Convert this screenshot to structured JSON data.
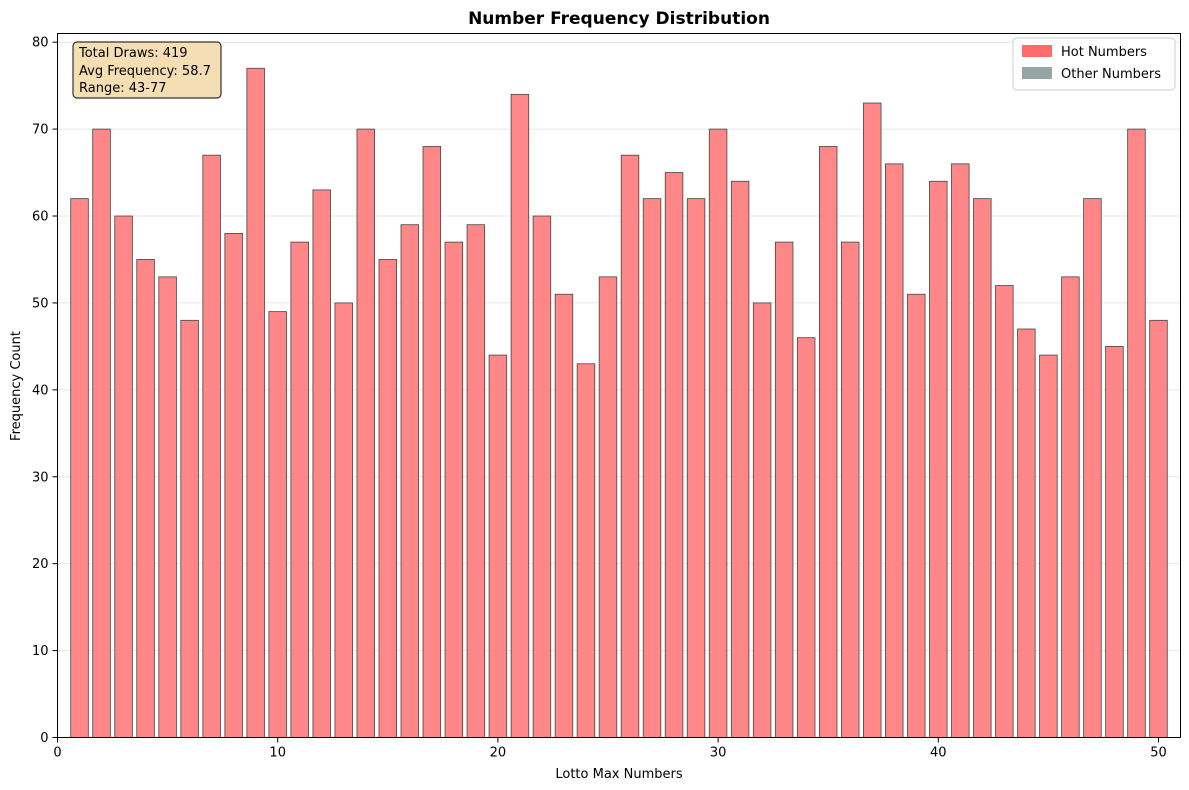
{
  "chart_data": {
    "type": "bar",
    "title": "Number Frequency Distribution",
    "xlabel": "Lotto Max Numbers",
    "ylabel": "Frequency Count",
    "x": [
      1,
      2,
      3,
      4,
      5,
      6,
      7,
      8,
      9,
      10,
      11,
      12,
      13,
      14,
      15,
      16,
      17,
      18,
      19,
      20,
      21,
      22,
      23,
      24,
      25,
      26,
      27,
      28,
      29,
      30,
      31,
      32,
      33,
      34,
      35,
      36,
      37,
      38,
      39,
      40,
      41,
      42,
      43,
      44,
      45,
      46,
      47,
      48,
      49,
      50
    ],
    "values": [
      62,
      70,
      60,
      55,
      53,
      48,
      67,
      58,
      77,
      49,
      57,
      63,
      50,
      70,
      55,
      59,
      68,
      57,
      59,
      44,
      74,
      60,
      51,
      43,
      53,
      67,
      62,
      65,
      62,
      70,
      64,
      50,
      57,
      46,
      68,
      57,
      73,
      66,
      51,
      64,
      66,
      62,
      52,
      47,
      44,
      53,
      62,
      45,
      70,
      48
    ],
    "xlim": [
      0,
      51
    ],
    "ylim": [
      0,
      81
    ],
    "xticks": [
      0,
      10,
      20,
      30,
      40,
      50
    ],
    "yticks": [
      0,
      10,
      20,
      30,
      40,
      50,
      60,
      70,
      80
    ],
    "grid": "y-axis, light",
    "legend": {
      "placement": "top-right",
      "entries": [
        {
          "label": "Hot Numbers",
          "color": "#ff6b6b"
        },
        {
          "label": "Other Numbers",
          "color": "#95a5a6"
        }
      ]
    },
    "bar_color": "#ff8787",
    "bar_edge_color": "#444444",
    "stats_box": {
      "lines": [
        "Total Draws: 419",
        "Avg Frequency: 58.7",
        "Range: 43-77"
      ],
      "background": "#f5deb3"
    }
  }
}
